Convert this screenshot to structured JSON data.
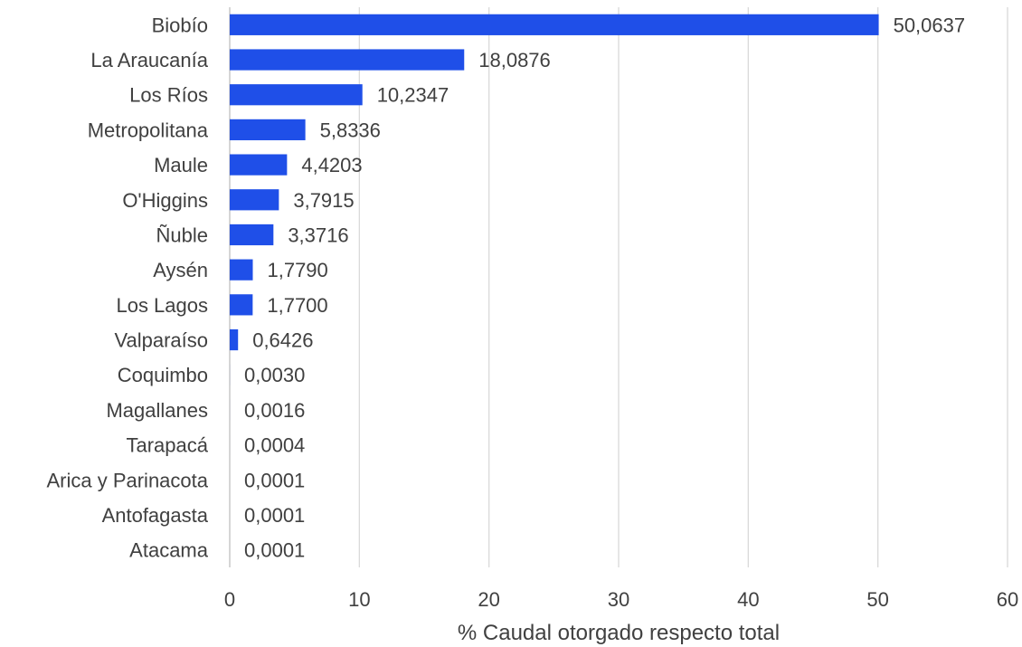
{
  "chart_data": {
    "type": "bar",
    "orientation": "horizontal",
    "categories": [
      "Biobío",
      "La Araucanía",
      "Los Ríos",
      "Metropolitana",
      "Maule",
      "O'Higgins",
      "Ñuble",
      "Aysén",
      "Los Lagos",
      "Valparaíso",
      "Coquimbo",
      "Magallanes",
      "Tarapacá",
      "Arica y Parinacota",
      "Antofagasta",
      "Atacama"
    ],
    "values": [
      50.0637,
      18.0876,
      10.2347,
      5.8336,
      4.4203,
      3.7915,
      3.3716,
      1.779,
      1.77,
      0.6426,
      0.003,
      0.0016,
      0.0004,
      0.0001,
      0.0001,
      0.0001
    ],
    "value_labels": [
      "50,0637",
      "18,0876",
      "10,2347",
      "5,8336",
      "4,4203",
      "3,7915",
      "3,3716",
      "1,7790",
      "1,7700",
      "0,6426",
      "0,0030",
      "0,0016",
      "0,0004",
      "0,0001",
      "0,0001",
      "0,0001"
    ],
    "title": "",
    "xlabel": "% Caudal otorgado respecto total",
    "ylabel": "",
    "xlim": [
      0,
      60
    ],
    "xticks": [
      "0",
      "10",
      "20",
      "30",
      "40",
      "50",
      "60"
    ],
    "grid": true,
    "bar_color": "#1f4fe8",
    "legend": "none"
  }
}
